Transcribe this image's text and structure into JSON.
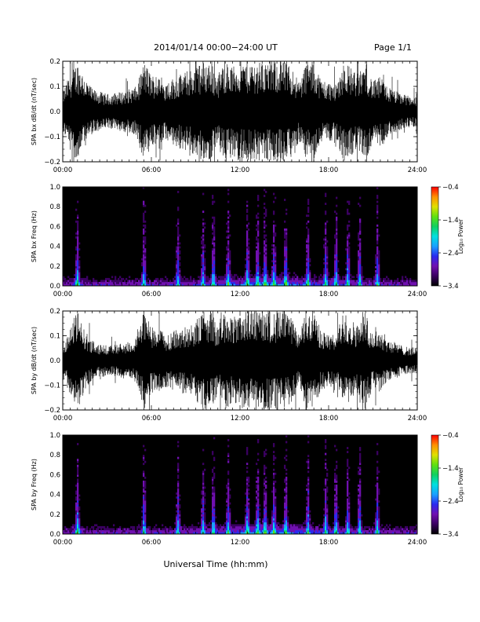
{
  "header": {
    "title": "2014/01/14   00:00−24:00 UT",
    "page": "Page 1/1"
  },
  "footer": {
    "xlabel": "Universal Time (hh:mm)"
  },
  "colors": {
    "waveform": "#000000",
    "spectrogram_background": "#000000",
    "colormap": [
      "#000000",
      "#3a0060",
      "#7010b0",
      "#2a2af0",
      "#1aa0ff",
      "#00e0e0",
      "#10d060",
      "#60e010",
      "#e0e000",
      "#ff9000",
      "#ff0000"
    ]
  },
  "chart_data": [
    {
      "type": "line",
      "panel": "waveform-bx",
      "ylabel": "SPA bx dB/dt (nT/sec)",
      "xlim": [
        "00:00",
        "24:00"
      ],
      "ylim": [
        -0.2,
        0.2
      ],
      "x_ticks": [
        "00:00",
        "06:00",
        "12:00",
        "18:00",
        "24:00"
      ],
      "y_ticks": [
        "0.2",
        "0.1",
        "0.0",
        "−0.1",
        "−0.2"
      ],
      "y_tick_values": [
        0.2,
        0.1,
        0.0,
        -0.1,
        -0.2
      ],
      "envelope_hours": [
        0,
        0.5,
        1,
        1.5,
        2,
        3,
        4,
        5,
        5.5,
        6,
        7,
        8,
        9,
        9.5,
        10,
        10.5,
        11,
        11.5,
        12,
        12.5,
        13,
        13.5,
        14,
        14.5,
        15,
        15.5,
        16,
        16.5,
        17,
        17.5,
        18,
        18.5,
        19,
        19.5,
        20,
        20.5,
        21,
        21.5,
        22,
        23,
        24
      ],
      "envelope_amplitude": [
        0.08,
        0.15,
        0.2,
        0.14,
        0.09,
        0.07,
        0.08,
        0.1,
        0.2,
        0.15,
        0.12,
        0.15,
        0.18,
        0.2,
        0.2,
        0.15,
        0.2,
        0.18,
        0.2,
        0.2,
        0.2,
        0.2,
        0.2,
        0.2,
        0.2,
        0.18,
        0.12,
        0.2,
        0.2,
        0.13,
        0.12,
        0.11,
        0.2,
        0.18,
        0.15,
        0.2,
        0.12,
        0.14,
        0.1,
        0.07,
        0.06
      ]
    },
    {
      "type": "heatmap",
      "panel": "spectrogram-bx",
      "ylabel": "SPA bx Freq (Hz)",
      "colorbar_label": "Log₁₀ Power",
      "xlim": [
        "00:00",
        "24:00"
      ],
      "ylim": [
        0.0,
        1.0
      ],
      "x_ticks": [
        "00:00",
        "06:00",
        "12:00",
        "18:00",
        "24:00"
      ],
      "y_ticks": [
        "1.0",
        "0.8",
        "0.6",
        "0.4",
        "0.2",
        "0.0"
      ],
      "y_tick_values": [
        1.0,
        0.8,
        0.6,
        0.4,
        0.2,
        0.0
      ],
      "color_range": [
        -3.4,
        -0.4
      ],
      "colorbar_ticks": [
        "−0.4",
        "−1.4",
        "−2.4",
        "−3.4"
      ],
      "colorbar_tick_values": [
        -0.4,
        -1.4,
        -2.4,
        -3.4
      ],
      "activity_bursts_hours": [
        1.0,
        5.5,
        7.8,
        9.5,
        10.2,
        11.2,
        12.5,
        13.2,
        13.7,
        14.3,
        15.1,
        16.6,
        17.8,
        18.5,
        19.3,
        20.1,
        21.3
      ]
    },
    {
      "type": "line",
      "panel": "waveform-by",
      "ylabel": "SPA by dB/dt (nT/sec)",
      "xlim": [
        "00:00",
        "24:00"
      ],
      "ylim": [
        -0.2,
        0.2
      ],
      "x_ticks": [
        "00:00",
        "06:00",
        "12:00",
        "18:00",
        "24:00"
      ],
      "y_ticks": [
        "0.2",
        "0.1",
        "0.0",
        "−0.1",
        "−0.2"
      ],
      "y_tick_values": [
        0.2,
        0.1,
        0.0,
        -0.1,
        -0.2
      ],
      "envelope_hours": [
        0,
        0.5,
        1,
        1.5,
        2,
        3,
        4,
        5,
        5.5,
        6,
        7,
        8,
        9,
        9.5,
        10,
        10.5,
        11,
        11.5,
        12,
        12.5,
        13,
        13.5,
        14,
        14.5,
        15,
        15.5,
        16,
        16.5,
        17,
        17.5,
        18,
        18.5,
        19,
        19.5,
        20,
        20.5,
        21,
        21.5,
        22,
        23,
        24
      ],
      "envelope_amplitude": [
        0.06,
        0.14,
        0.2,
        0.12,
        0.08,
        0.06,
        0.07,
        0.09,
        0.2,
        0.14,
        0.11,
        0.13,
        0.16,
        0.2,
        0.2,
        0.14,
        0.2,
        0.17,
        0.2,
        0.2,
        0.2,
        0.2,
        0.2,
        0.2,
        0.2,
        0.17,
        0.11,
        0.2,
        0.2,
        0.12,
        0.11,
        0.1,
        0.2,
        0.17,
        0.14,
        0.2,
        0.11,
        0.13,
        0.09,
        0.06,
        0.05
      ]
    },
    {
      "type": "heatmap",
      "panel": "spectrogram-by",
      "ylabel": "SPA by Freq (Hz)",
      "colorbar_label": "Log₁₀ Power",
      "xlim": [
        "00:00",
        "24:00"
      ],
      "ylim": [
        0.0,
        1.0
      ],
      "x_ticks": [
        "00:00",
        "06:00",
        "12:00",
        "18:00",
        "24:00"
      ],
      "y_ticks": [
        "1.0",
        "0.8",
        "0.6",
        "0.4",
        "0.2",
        "0.0"
      ],
      "y_tick_values": [
        1.0,
        0.8,
        0.6,
        0.4,
        0.2,
        0.0
      ],
      "color_range": [
        -3.4,
        -0.4
      ],
      "colorbar_ticks": [
        "−0.4",
        "−1.4",
        "−2.4",
        "−3.4"
      ],
      "colorbar_tick_values": [
        -0.4,
        -1.4,
        -2.4,
        -3.4
      ],
      "activity_bursts_hours": [
        1.0,
        5.5,
        7.8,
        9.5,
        10.2,
        11.2,
        12.5,
        13.2,
        13.7,
        14.3,
        15.1,
        16.6,
        17.8,
        18.5,
        19.3,
        20.1,
        21.3
      ]
    }
  ]
}
